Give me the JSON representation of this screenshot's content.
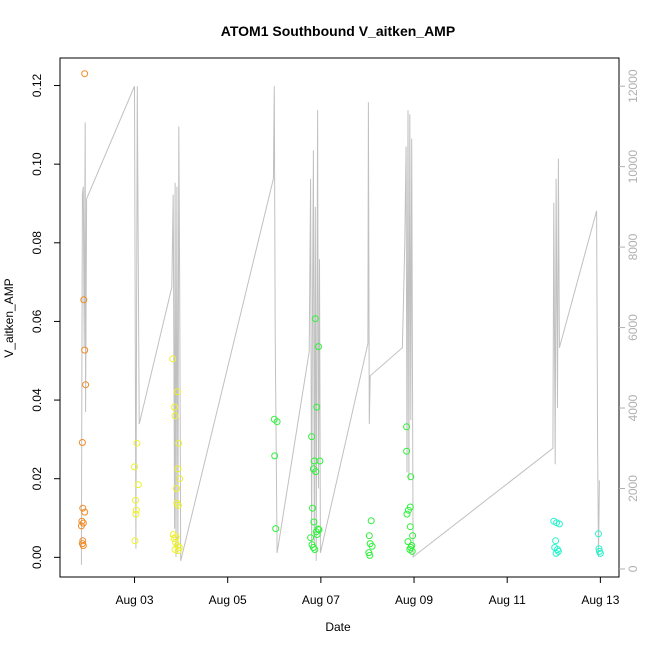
{
  "chart_data": {
    "type": "scatter",
    "title": "ATOM1 Southbound V_aitken_AMP",
    "xlabel": "Date",
    "ylabel": "V_aitken_AMP",
    "x_tick_labels": [
      "Aug 03",
      "Aug 05",
      "Aug 07",
      "Aug 09",
      "Aug 11",
      "Aug 13"
    ],
    "x_tick_days": [
      3,
      5,
      7,
      9,
      11,
      13
    ],
    "xlim_days": [
      1.4,
      13.4
    ],
    "ylim": [
      -0.005,
      0.127
    ],
    "y_ticks": [
      0.0,
      0.02,
      0.04,
      0.06,
      0.08,
      0.1,
      0.12
    ],
    "y_tick_labels": [
      "0.00",
      "0.02",
      "0.04",
      "0.06",
      "0.08",
      "0.10",
      "0.12"
    ],
    "y2lim": [
      -200,
      12700
    ],
    "y2_ticks": [
      0,
      2000,
      4000,
      6000,
      8000,
      10000,
      12000
    ],
    "y2_tick_labels": [
      "0",
      "2000",
      "4000",
      "6000",
      "8000",
      "10000",
      "12000"
    ],
    "colors": {
      "line": "#c0c0c0",
      "axis": "#000000",
      "right_axis": "#b0b0b0",
      "groups": [
        "#f08a24",
        "#eef22a",
        "#2ef23a",
        "#2af2cc"
      ]
    },
    "points": [
      {
        "x": 1.93,
        "y": 0.123,
        "g": 0
      },
      {
        "x": 1.91,
        "y": 0.0655,
        "g": 0
      },
      {
        "x": 1.93,
        "y": 0.0527,
        "g": 0
      },
      {
        "x": 1.95,
        "y": 0.0439,
        "g": 0
      },
      {
        "x": 1.88,
        "y": 0.0292,
        "g": 0
      },
      {
        "x": 1.89,
        "y": 0.0125,
        "g": 0
      },
      {
        "x": 1.93,
        "y": 0.0115,
        "g": 0
      },
      {
        "x": 1.87,
        "y": 0.0092,
        "g": 0
      },
      {
        "x": 1.9,
        "y": 0.0087,
        "g": 0
      },
      {
        "x": 1.86,
        "y": 0.008,
        "g": 0
      },
      {
        "x": 1.89,
        "y": 0.0042,
        "g": 0
      },
      {
        "x": 1.88,
        "y": 0.0035,
        "g": 0
      },
      {
        "x": 1.9,
        "y": 0.003,
        "g": 0
      },
      {
        "x": 3.0,
        "y": 0.023,
        "g": 1
      },
      {
        "x": 3.05,
        "y": 0.029,
        "g": 1
      },
      {
        "x": 3.08,
        "y": 0.0185,
        "g": 1
      },
      {
        "x": 3.02,
        "y": 0.0145,
        "g": 1
      },
      {
        "x": 3.04,
        "y": 0.012,
        "g": 1
      },
      {
        "x": 3.03,
        "y": 0.011,
        "g": 1
      },
      {
        "x": 3.01,
        "y": 0.0042,
        "g": 1
      },
      {
        "x": 3.82,
        "y": 0.0505,
        "g": 1
      },
      {
        "x": 3.92,
        "y": 0.0421,
        "g": 1
      },
      {
        "x": 3.86,
        "y": 0.0382,
        "g": 1
      },
      {
        "x": 3.87,
        "y": 0.036,
        "g": 1
      },
      {
        "x": 3.95,
        "y": 0.029,
        "g": 1
      },
      {
        "x": 3.93,
        "y": 0.0225,
        "g": 1
      },
      {
        "x": 3.97,
        "y": 0.02,
        "g": 1
      },
      {
        "x": 3.9,
        "y": 0.0175,
        "g": 1
      },
      {
        "x": 3.91,
        "y": 0.0138,
        "g": 1
      },
      {
        "x": 3.94,
        "y": 0.0132,
        "g": 1
      },
      {
        "x": 3.83,
        "y": 0.0058,
        "g": 1
      },
      {
        "x": 3.89,
        "y": 0.0052,
        "g": 1
      },
      {
        "x": 3.85,
        "y": 0.0048,
        "g": 1
      },
      {
        "x": 3.88,
        "y": 0.0038,
        "g": 1
      },
      {
        "x": 3.92,
        "y": 0.003,
        "g": 1
      },
      {
        "x": 3.96,
        "y": 0.0025,
        "g": 1
      },
      {
        "x": 3.87,
        "y": 0.002,
        "g": 1
      },
      {
        "x": 3.94,
        "y": 0.0017,
        "g": 1
      },
      {
        "x": 6.0,
        "y": 0.0351,
        "g": 2
      },
      {
        "x": 6.06,
        "y": 0.0345,
        "g": 2
      },
      {
        "x": 6.01,
        "y": 0.0258,
        "g": 2
      },
      {
        "x": 6.03,
        "y": 0.0073,
        "g": 2
      },
      {
        "x": 6.88,
        "y": 0.0607,
        "g": 2
      },
      {
        "x": 6.95,
        "y": 0.0536,
        "g": 2
      },
      {
        "x": 6.91,
        "y": 0.0382,
        "g": 2
      },
      {
        "x": 6.8,
        "y": 0.0307,
        "g": 2
      },
      {
        "x": 6.86,
        "y": 0.0245,
        "g": 2
      },
      {
        "x": 6.98,
        "y": 0.0245,
        "g": 2
      },
      {
        "x": 6.84,
        "y": 0.0225,
        "g": 2
      },
      {
        "x": 6.89,
        "y": 0.0218,
        "g": 2
      },
      {
        "x": 6.82,
        "y": 0.0125,
        "g": 2
      },
      {
        "x": 6.85,
        "y": 0.009,
        "g": 2
      },
      {
        "x": 6.94,
        "y": 0.0072,
        "g": 2
      },
      {
        "x": 6.96,
        "y": 0.007,
        "g": 2
      },
      {
        "x": 6.9,
        "y": 0.0065,
        "g": 2
      },
      {
        "x": 6.92,
        "y": 0.0058,
        "g": 2
      },
      {
        "x": 6.78,
        "y": 0.005,
        "g": 2
      },
      {
        "x": 6.81,
        "y": 0.0032,
        "g": 2
      },
      {
        "x": 6.84,
        "y": 0.0025,
        "g": 2
      },
      {
        "x": 6.87,
        "y": 0.002,
        "g": 2
      },
      {
        "x": 8.08,
        "y": 0.0093,
        "g": 2
      },
      {
        "x": 8.04,
        "y": 0.0055,
        "g": 2
      },
      {
        "x": 8.06,
        "y": 0.0035,
        "g": 2
      },
      {
        "x": 8.1,
        "y": 0.0028,
        "g": 2
      },
      {
        "x": 8.03,
        "y": 0.0012,
        "g": 2
      },
      {
        "x": 8.05,
        "y": 0.0005,
        "g": 2
      },
      {
        "x": 8.84,
        "y": 0.0332,
        "g": 2
      },
      {
        "x": 8.84,
        "y": 0.027,
        "g": 2
      },
      {
        "x": 8.93,
        "y": 0.0205,
        "g": 2
      },
      {
        "x": 8.92,
        "y": 0.0128,
        "g": 2
      },
      {
        "x": 8.88,
        "y": 0.012,
        "g": 2
      },
      {
        "x": 8.85,
        "y": 0.011,
        "g": 2
      },
      {
        "x": 8.92,
        "y": 0.0078,
        "g": 2
      },
      {
        "x": 8.97,
        "y": 0.0055,
        "g": 2
      },
      {
        "x": 8.87,
        "y": 0.004,
        "g": 2
      },
      {
        "x": 8.95,
        "y": 0.003,
        "g": 2
      },
      {
        "x": 8.93,
        "y": 0.0025,
        "g": 2
      },
      {
        "x": 8.91,
        "y": 0.002,
        "g": 2
      },
      {
        "x": 8.96,
        "y": 0.0015,
        "g": 2
      },
      {
        "x": 12.0,
        "y": 0.0092,
        "g": 3
      },
      {
        "x": 12.06,
        "y": 0.0088,
        "g": 3
      },
      {
        "x": 12.12,
        "y": 0.0085,
        "g": 3
      },
      {
        "x": 12.04,
        "y": 0.0042,
        "g": 3
      },
      {
        "x": 12.02,
        "y": 0.0025,
        "g": 3
      },
      {
        "x": 12.08,
        "y": 0.002,
        "g": 3
      },
      {
        "x": 12.1,
        "y": 0.0015,
        "g": 3
      },
      {
        "x": 12.05,
        "y": 0.001,
        "g": 3
      },
      {
        "x": 12.96,
        "y": 0.006,
        "g": 3
      },
      {
        "x": 12.97,
        "y": 0.0022,
        "g": 3
      },
      {
        "x": 12.98,
        "y": 0.0015,
        "g": 3
      },
      {
        "x": 13.0,
        "y": 0.001,
        "g": 3
      }
    ],
    "line_y2": [
      [
        1.86,
        100
      ],
      [
        1.87,
        5000
      ],
      [
        1.88,
        9300
      ],
      [
        1.9,
        9500
      ],
      [
        1.92,
        5500
      ],
      [
        1.94,
        11100
      ],
      [
        1.95,
        3900
      ],
      [
        1.97,
        9200
      ],
      [
        3.0,
        12000
      ],
      [
        3.03,
        500
      ],
      [
        3.06,
        12000
      ],
      [
        3.1,
        3600
      ],
      [
        3.8,
        7000
      ],
      [
        3.83,
        9300
      ],
      [
        3.86,
        1000
      ],
      [
        3.87,
        9600
      ],
      [
        3.89,
        300
      ],
      [
        3.91,
        9500
      ],
      [
        3.93,
        400
      ],
      [
        3.95,
        11000
      ],
      [
        3.97,
        7000
      ],
      [
        3.99,
        200
      ],
      [
        5.98,
        9700
      ],
      [
        6.0,
        12000
      ],
      [
        6.02,
        5800
      ],
      [
        6.06,
        400
      ],
      [
        6.75,
        5400
      ],
      [
        6.78,
        9700
      ],
      [
        6.8,
        500
      ],
      [
        6.82,
        6500
      ],
      [
        6.84,
        10400
      ],
      [
        6.86,
        600
      ],
      [
        6.88,
        9000
      ],
      [
        6.9,
        200
      ],
      [
        6.93,
        11400
      ],
      [
        6.95,
        2000
      ],
      [
        6.97,
        7700
      ],
      [
        6.99,
        400
      ],
      [
        8.01,
        5600
      ],
      [
        8.02,
        11600
      ],
      [
        8.04,
        3600
      ],
      [
        8.06,
        4800
      ],
      [
        8.75,
        5500
      ],
      [
        8.8,
        8000
      ],
      [
        8.83,
        10500
      ],
      [
        8.85,
        2400
      ],
      [
        8.87,
        11400
      ],
      [
        8.89,
        2200
      ],
      [
        8.91,
        11300
      ],
      [
        8.93,
        3700
      ],
      [
        8.95,
        10700
      ],
      [
        8.98,
        300
      ],
      [
        11.98,
        3000
      ],
      [
        12.0,
        9100
      ],
      [
        12.03,
        2600
      ],
      [
        12.05,
        9700
      ],
      [
        12.08,
        4000
      ],
      [
        12.1,
        10200
      ],
      [
        12.12,
        5500
      ],
      [
        12.92,
        8900
      ],
      [
        12.94,
        3100
      ],
      [
        12.96,
        300
      ],
      [
        12.98,
        2200
      ]
    ]
  }
}
